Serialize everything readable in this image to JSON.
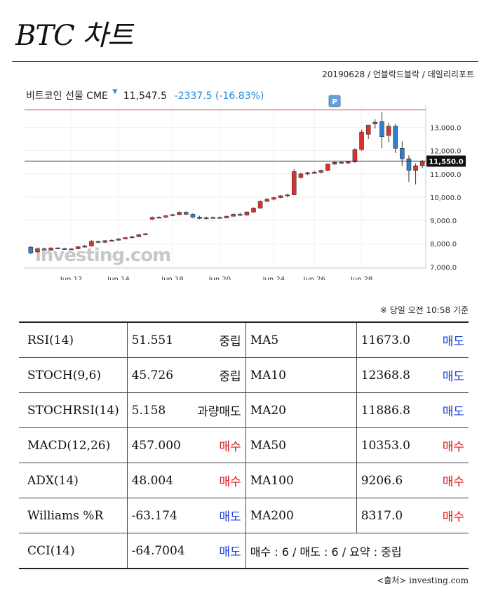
{
  "header": {
    "title": "BTC 차트",
    "byline": "20190628 / 언블락드블락 / 데일리리포트"
  },
  "quote": {
    "instrument": "비트코인 선물 CME",
    "price": "11,547.5",
    "change": "-2337.5 (-16.83%)",
    "change_color": "#1f8ad6"
  },
  "chart_data": {
    "type": "candlestick",
    "title": "",
    "x_tick_labels": [
      "Jun 12",
      "Jun 14",
      "Jun 18",
      "Jun 20",
      "Jun 24",
      "Jun 26",
      "Jun 28"
    ],
    "x_tick_positions": [
      6,
      13,
      21,
      28,
      36,
      42,
      49
    ],
    "y_tick_labels": [
      "13,000.0",
      "12,000.0",
      "11,000.0",
      "10,000.0",
      "9,000.0",
      "8,000.0",
      "7,000.0"
    ],
    "y_tick_values": [
      13000,
      12000,
      11000,
      10000,
      9000,
      8000,
      7000
    ],
    "ylim": [
      6950,
      13950
    ],
    "current_price_label": "11,550.0",
    "current_price": 11550,
    "reference_line": 13750,
    "marker_label": "P",
    "marker_index": 45,
    "watermark": "investing.com",
    "up_color": "#e0302c",
    "down_color": "#2f7fd1",
    "candles": [
      [
        7850,
        7900,
        7550,
        7600
      ],
      [
        7650,
        7800,
        7620,
        7780
      ],
      [
        7780,
        7830,
        7700,
        7720
      ],
      [
        7720,
        7840,
        7700,
        7820
      ],
      [
        7820,
        7850,
        7760,
        7790
      ],
      [
        7790,
        7830,
        7740,
        7760
      ],
      [
        7760,
        7800,
        7720,
        7780
      ],
      [
        7780,
        7900,
        7760,
        7870
      ],
      [
        7870,
        7950,
        7830,
        7900
      ],
      [
        7900,
        8150,
        7880,
        8100
      ],
      [
        8100,
        8130,
        8040,
        8060
      ],
      [
        8060,
        8160,
        8030,
        8130
      ],
      [
        8130,
        8190,
        8090,
        8150
      ],
      [
        8150,
        8240,
        8130,
        8210
      ],
      [
        8210,
        8290,
        8180,
        8260
      ],
      [
        8260,
        8330,
        8230,
        8300
      ],
      [
        8300,
        8420,
        8280,
        8390
      ],
      [
        8390,
        8450,
        8360,
        8430
      ],
      [
        9050,
        9170,
        9030,
        9130
      ],
      [
        9130,
        9190,
        9090,
        9140
      ],
      [
        9140,
        9230,
        9110,
        9210
      ],
      [
        9210,
        9280,
        9180,
        9250
      ],
      [
        9250,
        9380,
        9230,
        9350
      ],
      [
        9350,
        9400,
        9240,
        9260
      ],
      [
        9260,
        9300,
        9100,
        9140
      ],
      [
        9140,
        9200,
        9050,
        9080
      ],
      [
        9080,
        9160,
        9040,
        9120
      ],
      [
        9120,
        9170,
        9080,
        9130
      ],
      [
        9130,
        9180,
        9090,
        9110
      ],
      [
        9110,
        9200,
        9090,
        9180
      ],
      [
        9180,
        9300,
        9160,
        9260
      ],
      [
        9260,
        9340,
        9200,
        9230
      ],
      [
        9230,
        9380,
        9210,
        9360
      ],
      [
        9360,
        9560,
        9340,
        9530
      ],
      [
        9530,
        9860,
        9500,
        9820
      ],
      [
        9820,
        9960,
        9790,
        9910
      ],
      [
        9910,
        10020,
        9860,
        9980
      ],
      [
        9980,
        10100,
        9950,
        10060
      ],
      [
        10060,
        10150,
        10010,
        10100
      ],
      [
        10100,
        11200,
        10080,
        11100
      ],
      [
        10850,
        11050,
        10800,
        11000
      ],
      [
        11000,
        11090,
        10940,
        11050
      ],
      [
        11050,
        11140,
        11000,
        11070
      ],
      [
        11070,
        11190,
        11020,
        11150
      ],
      [
        11150,
        11450,
        11120,
        11420
      ],
      [
        11420,
        11560,
        11380,
        11500
      ],
      [
        11500,
        11560,
        11430,
        11470
      ],
      [
        11470,
        11560,
        11420,
        11520
      ],
      [
        11520,
        12100,
        11480,
        12050
      ],
      [
        12050,
        12900,
        12000,
        12800
      ],
      [
        12700,
        13100,
        12500,
        13100
      ],
      [
        13150,
        13350,
        12950,
        13220
      ],
      [
        13250,
        13650,
        12100,
        12600
      ],
      [
        12650,
        13200,
        12350,
        13050
      ],
      [
        13050,
        13150,
        11900,
        12100
      ],
      [
        12100,
        12400,
        11350,
        11650
      ],
      [
        11650,
        11800,
        10650,
        11150
      ],
      [
        11150,
        11450,
        10550,
        11350
      ],
      [
        11350,
        11600,
        11250,
        11547
      ]
    ]
  },
  "timestamp_note": "※ 당일 오전 10:58 기준",
  "indicators": {
    "rows": [
      {
        "osc_name": "RSI(14)",
        "osc_value": "51.551",
        "osc_signal": "중립",
        "osc_type": "neutral",
        "ma_name": "MA5",
        "ma_value": "11673.0",
        "ma_signal": "매도",
        "ma_type": "sell"
      },
      {
        "osc_name": "STOCH(9,6)",
        "osc_value": "45.726",
        "osc_signal": "중립",
        "osc_type": "neutral",
        "ma_name": "MA10",
        "ma_value": "12368.8",
        "ma_signal": "매도",
        "ma_type": "sell"
      },
      {
        "osc_name": "STOCHRSI(14)",
        "osc_value": "5.158",
        "osc_signal": "과량매도",
        "osc_type": "neutral",
        "ma_name": "MA20",
        "ma_value": "11886.8",
        "ma_signal": "매도",
        "ma_type": "sell"
      },
      {
        "osc_name": "MACD(12,26)",
        "osc_value": "457.000",
        "osc_signal": "매수",
        "osc_type": "buy",
        "ma_name": "MA50",
        "ma_value": "10353.0",
        "ma_signal": "매수",
        "ma_type": "buy"
      },
      {
        "osc_name": "ADX(14)",
        "osc_value": "48.004",
        "osc_signal": "매수",
        "osc_type": "buy",
        "ma_name": "MA100",
        "ma_value": "9206.6",
        "ma_signal": "매수",
        "ma_type": "buy"
      },
      {
        "osc_name": "Williams %R",
        "osc_value": "-63.174",
        "osc_signal": "매도",
        "osc_type": "sell",
        "ma_name": "MA200",
        "ma_value": "8317.0",
        "ma_signal": "매수",
        "ma_type": "buy"
      }
    ],
    "last_row": {
      "osc_name": "CCI(14)",
      "osc_value": "-64.7004",
      "osc_signal": "매도",
      "osc_type": "sell",
      "summary": "매수 : 6 / 매도 : 6 / 요약 : 중립"
    }
  },
  "source": "<출처> investing.com"
}
